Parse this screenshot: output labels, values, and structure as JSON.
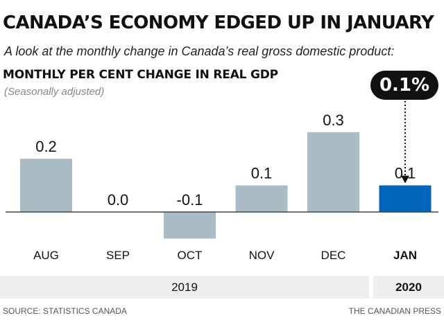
{
  "title": "CANADA’S ECONOMY EDGED UP IN JANUARY",
  "subtitle": "A look at the monthly change in Canada’s real gross domestic product:",
  "chart_heading": "MONTHLY PER CENT CHANGE IN REAL GDP",
  "chart_note": "(Seasonally adjusted)",
  "callout": "0.1%",
  "years": [
    "2019",
    "2020"
  ],
  "source": "SOURCE: STATISTICS CANADA",
  "credit": "THE CANADIAN PRESS",
  "colors": {
    "bar": "#a9bcc6",
    "highlight": "#0066bb",
    "baseline": "#444444"
  },
  "chart_data": {
    "type": "bar",
    "categories": [
      "AUG",
      "SEP",
      "OCT",
      "NOV",
      "DEC",
      "JAN"
    ],
    "values": [
      0.2,
      0.0,
      -0.1,
      0.1,
      0.3,
      0.1
    ],
    "value_labels": [
      "0.2",
      "0.0",
      "-0.1",
      "0.1",
      "0.3",
      "0.1"
    ],
    "highlight_index": 5,
    "ylim": [
      -0.1,
      0.3
    ],
    "grid": false,
    "legend": "none"
  }
}
